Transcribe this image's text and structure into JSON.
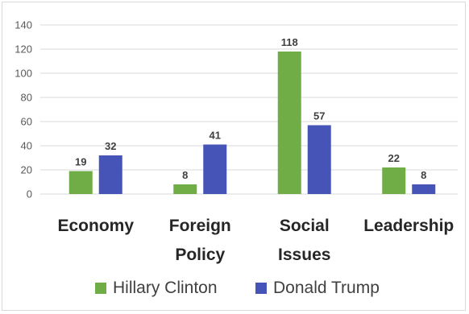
{
  "chart_data": {
    "type": "bar",
    "title": "",
    "xlabel": "",
    "ylabel": "",
    "ylim": [
      0,
      140
    ],
    "yticks": [
      0,
      20,
      40,
      60,
      80,
      100,
      120,
      140
    ],
    "grid": true,
    "legend_position": "bottom",
    "categories": [
      [
        "Economy"
      ],
      [
        "Foreign",
        "Policy"
      ],
      [
        "Social",
        "Issues"
      ],
      [
        "Leadership"
      ]
    ],
    "series": [
      {
        "name": "Hillary Clinton",
        "color": "#70ad47",
        "values": [
          19,
          8,
          118,
          22
        ]
      },
      {
        "name": "Donald Trump",
        "color": "#4654b8",
        "values": [
          32,
          41,
          57,
          8
        ]
      }
    ]
  }
}
